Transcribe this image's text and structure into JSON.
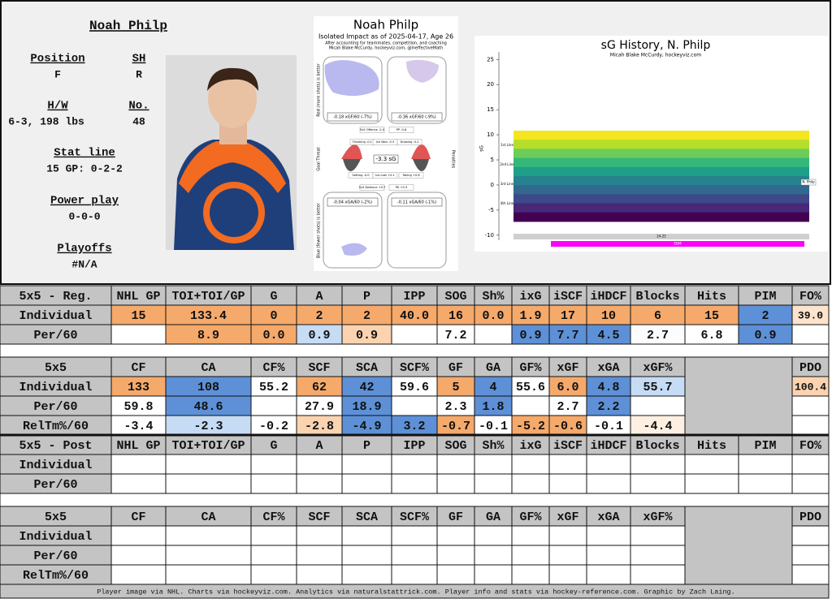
{
  "player": {
    "name": "Noah Philp",
    "fields": [
      {
        "label": "Position",
        "value": "F"
      },
      {
        "label": "SH",
        "value": "R"
      },
      {
        "label": "H/W",
        "value": "6-3, 198 lbs"
      },
      {
        "label": "No.",
        "value": "48"
      },
      {
        "label": "Stat line",
        "value": "15 GP: 0-2-2"
      },
      {
        "label": "Power play",
        "value": "0-0-0"
      },
      {
        "label": "Playoffs",
        "value": "#N/A"
      }
    ]
  },
  "impact_chart": {
    "title": "Noah Philp",
    "subtitle": "Isolated Impact as of 2025-04-17, Age 26",
    "notes": [
      "After accounting for teammates, competition, and coaching",
      "Micah Blake McCurdy, hockeyviz.com, @IneffectiveMath"
    ],
    "side_labels": [
      "Red (more shots) is better",
      "Blue (fewer shots) is better",
      "Goal Threat",
      "Penalties"
    ],
    "boxes": [
      "-0.18 xGF/60 (-7%)",
      "-0.36 xGF/60 (-9%)",
      "-3.3 sG",
      "-0.04 xGA/60 (-2%)",
      "-0.11 xGA/60 (-1%)"
    ],
    "components": [
      "5v5 Offence -2.0",
      "PP -0.6",
      "Finishing -0.1",
      "Ice Won -0.3",
      "Drawing -0.2",
      "Setting -0.0",
      "Ice Lost +0.1",
      "Taking +0.6",
      "5v5 Defence +0.7",
      "PK +0.3"
    ]
  },
  "chart_data": {
    "type": "band",
    "title": "sG History, N. Philp",
    "subtitle": "Micah Blake McCurdy, hockeyviz.com",
    "ylabel": "sG",
    "ylim": [
      -11,
      26.5
    ],
    "yticks": [
      25,
      20,
      15,
      10,
      5,
      0,
      -5,
      -10
    ],
    "line_labels": [
      "1st Line",
      "2nd Line",
      "3rd Line",
      "4th Line"
    ],
    "player_label": "N. Philp",
    "season": "24-25",
    "team": "EDM",
    "team_color": "#ff00ff"
  },
  "tables": [
    {
      "header": [
        "5x5 - Reg.",
        "NHL GP",
        "TOI+TOI/GP",
        "G",
        "A",
        "P",
        "IPP",
        "SOG",
        "Sh%",
        "ixG",
        "iSCF",
        "iHDCF",
        "Blocks",
        "Hits",
        "PIM",
        "FO%"
      ],
      "rows": [
        {
          "label": "Individual",
          "cells": [
            "15",
            "133.4",
            "0",
            "2",
            "2",
            "40.0",
            "16",
            "0.0",
            "1.9",
            "17",
            "10",
            "6",
            "15",
            "2",
            "39.0"
          ],
          "colors": [
            "#f5a96b",
            "#f5a96b",
            "#f5a96b",
            "#f5a96b",
            "#f5a96b",
            "#f5a96b",
            "#f5a96b",
            "#f5a96b",
            "#f5a96b",
            "#f5a96b",
            "#f5a96b",
            "#f5a96b",
            "#f5a96b",
            "#5d90d6",
            "#fde3cc"
          ]
        },
        {
          "label": "Per/60",
          "cells": [
            null,
            "8.9",
            "0.0",
            "0.9",
            "0.9",
            null,
            "7.2",
            null,
            "0.9",
            "7.7",
            "4.5",
            "2.7",
            "6.8",
            "0.9",
            null
          ],
          "colors": [
            "#ffffff",
            "#f5a96b",
            "#f5a96b",
            "#c6dbf4",
            "#fbd3b0",
            "#ffffff",
            "#ffffff",
            "#ffffff",
            "#5d90d6",
            "#5d90d6",
            "#5d90d6",
            "#fbfcfe",
            "#ffffff",
            "#5d90d6",
            "#ffffff"
          ]
        }
      ]
    },
    {
      "header": [
        "5x5",
        "CF",
        "CA",
        "CF%",
        "SCF",
        "SCA",
        "SCF%",
        "GF",
        "GA",
        "GF%",
        "xGF",
        "xGA",
        "xGF%",
        "PDO"
      ],
      "rows": [
        {
          "label": "Individual",
          "cells": [
            "133",
            "108",
            "55.2",
            "62",
            "42",
            "59.6",
            "5",
            "4",
            "55.6",
            "6.0",
            "4.8",
            "55.7",
            "100.4"
          ],
          "colors": [
            "#f5a96b",
            "#5d90d6",
            "#ffffff",
            "#f5a96b",
            "#5d90d6",
            "#ffffff",
            "#f5a96b",
            "#5d90d6",
            "#ffffff",
            "#f5a96b",
            "#5d90d6",
            "#c6dbf4",
            "#fbd3b0"
          ]
        },
        {
          "label": "Per/60",
          "cells": [
            "59.8",
            "48.6",
            null,
            "27.9",
            "18.9",
            null,
            "2.3",
            "1.8",
            null,
            "2.7",
            "2.2",
            null,
            null
          ],
          "colors": [
            "#ffffff",
            "#5d90d6",
            "#ffffff",
            "#ffffff",
            "#5d90d6",
            "#ffffff",
            "#ffffff",
            "#5d90d6",
            "#ffffff",
            "#ffffff",
            "#5d90d6",
            "#ffffff",
            "#ffffff"
          ]
        },
        {
          "label": "RelTm%/60",
          "cells": [
            "-3.4",
            "-2.3",
            "-0.2",
            "-2.8",
            "-4.9",
            "3.2",
            "-0.7",
            "-0.1",
            "-5.2",
            "-0.6",
            "-0.1",
            "-4.4",
            null
          ],
          "colors": [
            "#ffffff",
            "#c6dbf4",
            "#ffffff",
            "#fbd3b0",
            "#5d90d6",
            "#5d90d6",
            "#f5a96b",
            "#ffffff",
            "#f5a96b",
            "#f5a96b",
            "#ffffff",
            "#fdf0e2",
            "#ffffff"
          ]
        }
      ]
    },
    {
      "header": [
        "5x5 - Post",
        "NHL GP",
        "TOI+TOI/GP",
        "G",
        "A",
        "P",
        "IPP",
        "SOG",
        "Sh%",
        "ixG",
        "iSCF",
        "iHDCF",
        "Blocks",
        "Hits",
        "PIM",
        "FO%"
      ],
      "rows": [
        {
          "label": "Individual"
        },
        {
          "label": "Per/60"
        }
      ]
    },
    {
      "header": [
        "5x5",
        "CF",
        "CA",
        "CF%",
        "SCF",
        "SCA",
        "SCF%",
        "GF",
        "GA",
        "GF%",
        "xGF",
        "xGA",
        "xGF%",
        "PDO"
      ],
      "rows": [
        {
          "label": "Individual"
        },
        {
          "label": "Per/60"
        },
        {
          "label": "RelTm%/60"
        }
      ]
    }
  ],
  "footer": "Player image via NHL. Charts via hockeyviz.com. Analytics via naturalstattrick.com. Player info and stats via hockey-reference.com. Graphic by Zach Laing."
}
